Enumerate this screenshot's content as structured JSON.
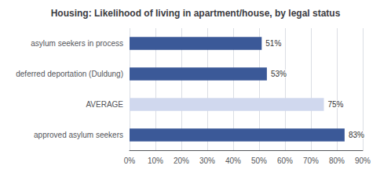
{
  "chart_data": {
    "type": "bar",
    "orientation": "horizontal",
    "title": "Housing: Likelihood of living in apartment/house, by legal status",
    "categories": [
      "approved asylum seekers",
      "AVERAGE",
      "deferred deportation (Duldung)",
      "asylum seekers in process"
    ],
    "values": [
      0.83,
      0.75,
      0.53,
      0.51
    ],
    "value_labels": [
      "83%",
      "75%",
      "53%",
      "51%"
    ],
    "colors": [
      "#3B5998",
      "#D0D8EE",
      "#3B5998",
      "#3B5998"
    ],
    "xlim": [
      0,
      0.9
    ],
    "xticks": [
      {
        "value": 0.0,
        "label": "0%"
      },
      {
        "value": 0.1,
        "label": "10%"
      },
      {
        "value": 0.2,
        "label": "20%"
      },
      {
        "value": 0.3,
        "label": "30%"
      },
      {
        "value": 0.4,
        "label": "40%"
      },
      {
        "value": 0.5,
        "label": "50%"
      },
      {
        "value": 0.6,
        "label": "60%"
      },
      {
        "value": 0.7,
        "label": "70%"
      },
      {
        "value": 0.8,
        "label": "80%"
      },
      {
        "value": 0.9,
        "label": "90%"
      }
    ],
    "grid": true,
    "data_labels": true
  }
}
